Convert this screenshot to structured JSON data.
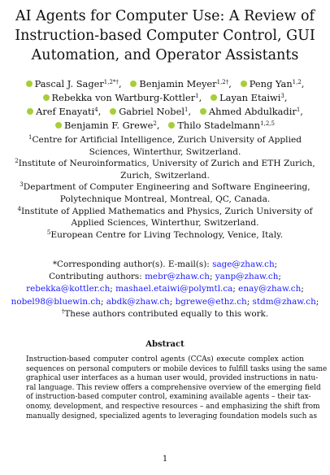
{
  "title_lines": [
    "AI Agents for Computer Use: A Review of",
    "Instruction-based Computer Control, GUI",
    "Automation, and Operator Assistants"
  ],
  "authors": [
    {
      "name": "Pascal J. Sager",
      "sup": "1,2*†"
    },
    {
      "name": "Benjamin Meyer",
      "sup": "1,2†"
    },
    {
      "name": "Peng Yan",
      "sup": "1,2"
    },
    {
      "name": "Rebekka von Wartburg-Kottler",
      "sup": "1"
    },
    {
      "name": "Layan Etaiwi",
      "sup": "3"
    },
    {
      "name": "Aref Enayati",
      "sup": "4"
    },
    {
      "name": "Gabriel Nobel",
      "sup": "1"
    },
    {
      "name": "Ahmed Abdulkadir",
      "sup": "1"
    },
    {
      "name": "Benjamin F. Grewe",
      "sup": "2"
    },
    {
      "name": "Thilo Stadelmann",
      "sup": "1,2,5"
    }
  ],
  "affiliations": [
    {
      "num": "1",
      "text": "Centre for Artificial Intelligence, Zurich University of Applied Sciences, Winterthur, Switzerland."
    },
    {
      "num": "2",
      "text": "Institute of Neuroinformatics, University of Zurich and ETH Zurich, Zurich, Switzerland."
    },
    {
      "num": "3",
      "text": "Department of Computer Engineering and Software Engineering, Polytechnique Montreal, Montreal, QC, Canada."
    },
    {
      "num": "4",
      "text": "Institute of Applied Mathematics and Physics, Zurich University of Applied Sciences, Winterthur, Switzerland."
    },
    {
      "num": "5",
      "text": "European Centre for Living Technology, Venice, Italy."
    }
  ],
  "correspondence": {
    "label": "*Corresponding author(s). E-mail(s):",
    "email": "sage@zhaw.ch",
    "contrib_label": "Contributing authors:",
    "contrib_emails": [
      "mebr@zhaw.ch",
      "yanp@zhaw.ch",
      "rebekka@kottler.ch",
      "mashael.etaiwi@polymtl.ca",
      "enay@zhaw.ch",
      "nobel98@bluewin.ch",
      "abdk@zhaw.ch",
      "bgrewe@ethz.ch",
      "stdm@zhaw.ch"
    ],
    "equal_note": "These authors contributed equally to this work.",
    "dagger": "†"
  },
  "abstract": {
    "heading": "Abstract",
    "lines": [
      "Instruction-based computer control agents (CCAs) execute complex action",
      "sequences on personal computers or mobile devices to fulfill tasks using the same",
      "graphical user interfaces as a human user would, provided instructions in natu-",
      "ral language. This review offers a comprehensive overview of the emerging field",
      "of instruction-based computer control, examining available agents – their tax-",
      "onomy, development, and respective resources – and emphasizing the shift from",
      "manually designed, specialized agents to leveraging foundation models such as"
    ]
  },
  "page_number": "1"
}
